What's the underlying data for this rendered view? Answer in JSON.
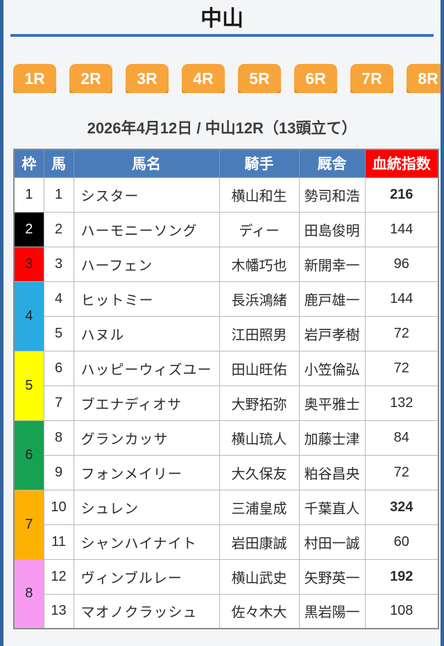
{
  "page": {
    "venue": "中山",
    "race_title": "2026年4月12日 / 中山12R（13頭立て）"
  },
  "race_nav": {
    "buttons": [
      "1R",
      "2R",
      "3R",
      "4R",
      "5R",
      "6R",
      "7R",
      "8R"
    ]
  },
  "table": {
    "headers": {
      "frame": "枠",
      "number": "馬",
      "name": "馬名",
      "jockey": "騎手",
      "stable": "厩舎",
      "index": "血統指数"
    },
    "rows": [
      {
        "frame_cell": {
          "label": "1",
          "color": "#ffffff",
          "text_color": "#222222",
          "rowspan": 1
        },
        "number": "1",
        "name": "シスター",
        "jockey": "横山和生",
        "stable": "勢司和浩",
        "index": "216",
        "index_red": true
      },
      {
        "frame_cell": {
          "label": "2",
          "color": "#000000",
          "text_color": "#ffffff",
          "rowspan": 1
        },
        "number": "2",
        "name": "ハーモニーソング",
        "jockey": "ディー",
        "stable": "田島俊明",
        "index": "144",
        "index_red": false
      },
      {
        "frame_cell": {
          "label": "3",
          "color": "#ff0000",
          "text_color": "#222222",
          "rowspan": 1
        },
        "number": "3",
        "name": "ハーフェン",
        "jockey": "木幡巧也",
        "stable": "新開幸一",
        "index": "96",
        "index_red": false
      },
      {
        "frame_cell": {
          "label": "4",
          "color": "#29abe2",
          "text_color": "#222222",
          "rowspan": 2
        },
        "number": "4",
        "name": "ヒットミー",
        "jockey": "長浜鴻緒",
        "stable": "鹿戸雄一",
        "index": "144",
        "index_red": false
      },
      {
        "number": "5",
        "name": "ハヌル",
        "jockey": "江田照男",
        "stable": "岩戸孝樹",
        "index": "72",
        "index_red": false
      },
      {
        "frame_cell": {
          "label": "5",
          "color": "#ffff00",
          "text_color": "#222222",
          "rowspan": 2
        },
        "number": "6",
        "name": "ハッピーウィズユー",
        "jockey": "田山旺佑",
        "stable": "小笠倫弘",
        "index": "72",
        "index_red": false
      },
      {
        "number": "7",
        "name": "ブエナディオサ",
        "jockey": "大野拓弥",
        "stable": "奥平雅士",
        "index": "132",
        "index_red": false
      },
      {
        "frame_cell": {
          "label": "6",
          "color": "#17a253",
          "text_color": "#222222",
          "rowspan": 2
        },
        "number": "8",
        "name": "グランカッサ",
        "jockey": "横山琉人",
        "stable": "加藤士津",
        "index": "84",
        "index_red": false
      },
      {
        "number": "9",
        "name": "フォンメイリー",
        "jockey": "大久保友",
        "stable": "粕谷昌央",
        "index": "72",
        "index_red": false
      },
      {
        "frame_cell": {
          "label": "7",
          "color": "#fcb103",
          "text_color": "#222222",
          "rowspan": 2
        },
        "number": "10",
        "name": "シュレン",
        "jockey": "三浦皇成",
        "stable": "千葉直人",
        "index": "324",
        "index_red": true
      },
      {
        "number": "11",
        "name": "シャンハイナイト",
        "jockey": "岩田康誠",
        "stable": "村田一誠",
        "index": "60",
        "index_red": false
      },
      {
        "frame_cell": {
          "label": "8",
          "color": "#f79bf2",
          "text_color": "#222222",
          "rowspan": 2
        },
        "number": "12",
        "name": "ヴィンブルレー",
        "jockey": "横山武史",
        "stable": "矢野英一",
        "index": "192",
        "index_red": true
      },
      {
        "number": "13",
        "name": "マオノクラッシュ",
        "jockey": "佐々木大",
        "stable": "黒岩陽一",
        "index": "108",
        "index_red": false
      }
    ]
  },
  "colors": {
    "page_border_blue": "#34659f",
    "header_rule_blue": "#3a74b9",
    "table_header_blue": "#4a7cba",
    "index_header_red": "#ff0000",
    "index_column_yellow": "#ffff9e",
    "index_value_red": "#ff0000",
    "race_button_orange": "#f7a53b",
    "race_button_shadow": "#e0901f"
  }
}
